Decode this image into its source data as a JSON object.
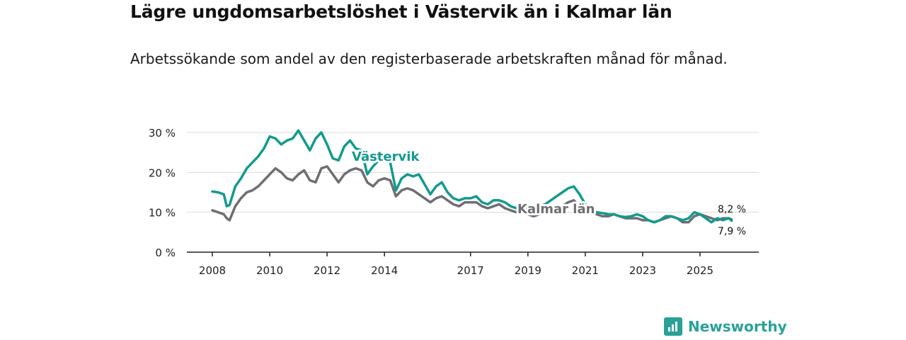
{
  "header": {
    "title": "Lägre ungdomsarbetslöshet i Västervik än i Kalmar län",
    "subtitle": "Arbetssökande som andel av den registerbaserade arbetskraften månad för månad."
  },
  "brand": {
    "name": "Newsworthy",
    "icon": "newsworthy-logo-icon"
  },
  "colors": {
    "vastervik": "#139a8e",
    "kalmar": "#6e6e73",
    "grid": "#d9d9d9",
    "axis": "#222222"
  },
  "chart_data": {
    "type": "line",
    "title": "Lägre ungdomsarbetslöshet i Västervik än i Kalmar län",
    "xlabel": "",
    "ylabel": "",
    "x_range": [
      2008.0,
      2026.2
    ],
    "ylim": [
      0,
      30
    ],
    "x_ticks": [
      {
        "value": 2008,
        "label": "2008"
      },
      {
        "value": 2010,
        "label": "2010"
      },
      {
        "value": 2012,
        "label": "2012"
      },
      {
        "value": 2014,
        "label": "2014"
      },
      {
        "value": 2017,
        "label": "2017"
      },
      {
        "value": 2019,
        "label": "2019"
      },
      {
        "value": 2021,
        "label": "2021"
      },
      {
        "value": 2023,
        "label": "2023"
      },
      {
        "value": 2025,
        "label": "2025"
      }
    ],
    "y_ticks": [
      {
        "value": 0,
        "label": "0 %"
      },
      {
        "value": 10,
        "label": "10 %"
      },
      {
        "value": 20,
        "label": "20 %"
      },
      {
        "value": 30,
        "label": "30 %"
      }
    ],
    "series": [
      {
        "name": "Västervik",
        "label": "Västervik",
        "end_label": "7,9 %",
        "x": [
          2008.0,
          2008.2,
          2008.4,
          2008.5,
          2008.6,
          2008.8,
          2009.0,
          2009.2,
          2009.4,
          2009.6,
          2009.8,
          2010.0,
          2010.2,
          2010.4,
          2010.6,
          2010.8,
          2011.0,
          2011.2,
          2011.4,
          2011.6,
          2011.8,
          2012.0,
          2012.2,
          2012.4,
          2012.6,
          2012.8,
          2013.0,
          2013.2,
          2013.4,
          2013.6,
          2013.8,
          2014.0,
          2014.2,
          2014.4,
          2014.6,
          2014.8,
          2015.0,
          2015.2,
          2015.4,
          2015.6,
          2015.8,
          2016.0,
          2016.2,
          2016.4,
          2016.6,
          2016.8,
          2017.0,
          2017.2,
          2017.4,
          2017.6,
          2017.8,
          2018.0,
          2018.2,
          2018.4,
          2018.6,
          2018.8,
          2019.0,
          2019.2,
          2019.4,
          2019.6,
          2019.8,
          2020.0,
          2020.2,
          2020.4,
          2020.6,
          2020.8,
          2021.0,
          2021.2,
          2021.4,
          2021.6,
          2021.8,
          2022.0,
          2022.2,
          2022.4,
          2022.6,
          2022.8,
          2023.0,
          2023.2,
          2023.4,
          2023.6,
          2023.8,
          2024.0,
          2024.2,
          2024.4,
          2024.6,
          2024.8,
          2025.0,
          2025.2,
          2025.4,
          2025.6,
          2025.8,
          2026.0,
          2026.1
        ],
        "y": [
          15.2,
          15.0,
          14.5,
          11.5,
          11.8,
          16.5,
          18.5,
          21.0,
          22.5,
          24.0,
          26.0,
          29.0,
          28.5,
          27.0,
          28.0,
          28.5,
          30.5,
          28.0,
          25.5,
          28.5,
          30.0,
          27.0,
          23.5,
          23.0,
          26.5,
          28.0,
          26.0,
          25.5,
          19.5,
          21.5,
          23.0,
          24.0,
          22.5,
          15.5,
          18.5,
          19.5,
          19.0,
          19.5,
          17.0,
          14.5,
          16.5,
          17.5,
          15.0,
          13.5,
          13.0,
          13.5,
          13.5,
          14.0,
          12.5,
          12.0,
          13.0,
          13.0,
          12.5,
          11.5,
          11.0,
          11.5,
          11.0,
          11.0,
          11.5,
          12.0,
          13.0,
          14.0,
          15.0,
          16.0,
          16.5,
          14.5,
          12.0,
          10.5,
          10.0,
          9.8,
          9.5,
          9.5,
          9.0,
          8.8,
          9.0,
          9.5,
          9.0,
          8.0,
          7.5,
          8.0,
          9.0,
          9.0,
          8.5,
          8.0,
          8.5,
          10.0,
          9.5,
          8.5,
          7.5,
          8.5,
          8.0,
          8.5,
          7.9
        ]
      },
      {
        "name": "Kalmar län",
        "label": "Kalmar län",
        "end_label": "8,2 %",
        "x": [
          2008.0,
          2008.2,
          2008.4,
          2008.5,
          2008.6,
          2008.8,
          2009.0,
          2009.2,
          2009.4,
          2009.6,
          2009.8,
          2010.0,
          2010.2,
          2010.4,
          2010.6,
          2010.8,
          2011.0,
          2011.2,
          2011.4,
          2011.6,
          2011.8,
          2012.0,
          2012.2,
          2012.4,
          2012.6,
          2012.8,
          2013.0,
          2013.2,
          2013.4,
          2013.6,
          2013.8,
          2014.0,
          2014.2,
          2014.4,
          2014.6,
          2014.8,
          2015.0,
          2015.2,
          2015.4,
          2015.6,
          2015.8,
          2016.0,
          2016.2,
          2016.4,
          2016.6,
          2016.8,
          2017.0,
          2017.2,
          2017.4,
          2017.6,
          2017.8,
          2018.0,
          2018.2,
          2018.4,
          2018.6,
          2018.8,
          2019.0,
          2019.2,
          2019.4,
          2019.6,
          2019.8,
          2020.0,
          2020.2,
          2020.4,
          2020.6,
          2020.8,
          2021.0,
          2021.2,
          2021.4,
          2021.6,
          2021.8,
          2022.0,
          2022.2,
          2022.4,
          2022.6,
          2022.8,
          2023.0,
          2023.2,
          2023.4,
          2023.6,
          2023.8,
          2024.0,
          2024.2,
          2024.4,
          2024.6,
          2024.8,
          2025.0,
          2025.2,
          2025.4,
          2025.6,
          2025.8,
          2026.0,
          2026.1
        ],
        "y": [
          10.5,
          10.0,
          9.5,
          8.5,
          8.0,
          11.5,
          13.5,
          15.0,
          15.5,
          16.5,
          18.0,
          19.5,
          21.0,
          20.0,
          18.5,
          18.0,
          19.5,
          20.5,
          18.0,
          17.5,
          21.0,
          21.5,
          19.5,
          17.5,
          19.5,
          20.5,
          21.0,
          20.5,
          17.5,
          16.5,
          18.0,
          18.5,
          18.0,
          14.0,
          15.5,
          16.0,
          15.5,
          14.5,
          13.5,
          12.5,
          13.5,
          14.0,
          13.0,
          12.0,
          11.5,
          12.5,
          12.5,
          12.5,
          11.5,
          11.0,
          11.5,
          12.0,
          11.0,
          10.5,
          10.0,
          10.0,
          9.5,
          9.0,
          9.5,
          10.0,
          10.5,
          11.0,
          11.5,
          12.5,
          13.0,
          11.5,
          11.0,
          10.0,
          9.5,
          9.0,
          9.0,
          9.5,
          9.0,
          8.5,
          8.5,
          8.5,
          8.0,
          8.0,
          7.5,
          8.0,
          8.5,
          9.0,
          8.5,
          7.5,
          7.5,
          9.0,
          9.5,
          9.0,
          8.5,
          8.0,
          8.5,
          8.5,
          8.2
        ]
      }
    ]
  }
}
